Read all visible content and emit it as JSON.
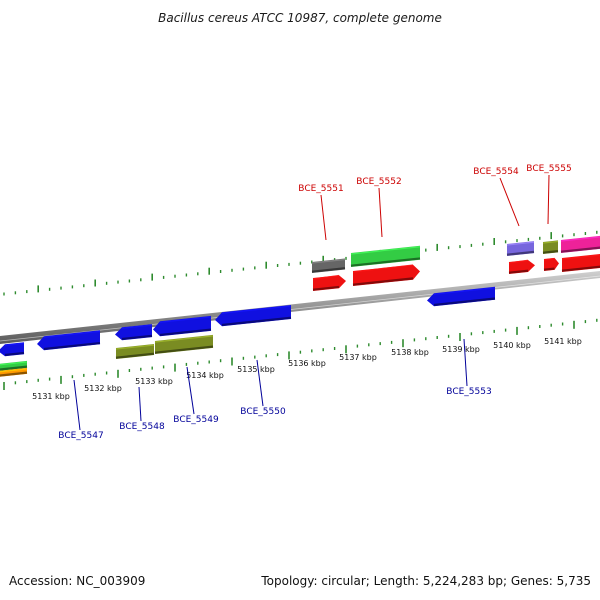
{
  "title": "Bacillus cereus ATCC 10987, complete genome",
  "footer": {
    "accession": "Accession: NC_003909",
    "summary": "Topology: circular; Length: 5,224,283 bp; Genes: 5,735"
  },
  "map": {
    "kbp_labels": [
      "5131 kbp",
      "5132 kbp",
      "5133 kbp",
      "5134 kbp",
      "5135 kbp",
      "5136 kbp",
      "5137 kbp",
      "5138 kbp",
      "5139 kbp",
      "5140 kbp",
      "5141 kbp"
    ],
    "forward_labels": [
      "BCE_5551",
      "BCE_5552",
      "BCE_5554",
      "BCE_5555"
    ],
    "reverse_labels": [
      "BCE_5547",
      "BCE_5548",
      "BCE_5549",
      "BCE_5550",
      "BCE_5553"
    ]
  },
  "colors": {
    "backbone": "#8a8a8a",
    "forward_tick": "#2e8b2e",
    "forward_label": "#cc0000",
    "reverse_label": "#000099",
    "gene_blue": "#1010e0",
    "gene_red": "#ee1111",
    "gene_green": "#33cc44",
    "gene_olive": "#7a8c22",
    "gene_gray": "#666666",
    "gene_purple": "#7766dd",
    "gene_pink": "#ee2299",
    "gene_orange": "#ff9900"
  }
}
